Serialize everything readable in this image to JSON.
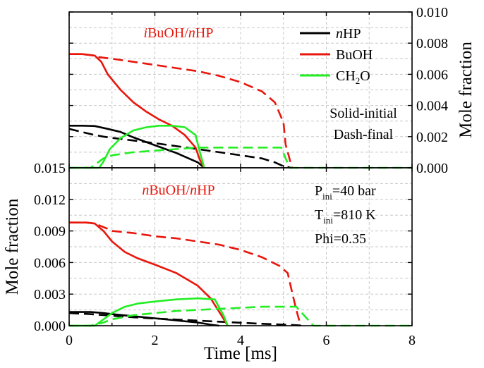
{
  "chart_data": [
    {
      "type": "line",
      "panel": "top",
      "title": "iBuOH/nHP",
      "title_parts": [
        {
          "text": "i",
          "italic": true
        },
        {
          "text": "BuOH/",
          "italic": false
        },
        {
          "text": "n",
          "italic": true
        },
        {
          "text": "HP",
          "italic": false
        }
      ],
      "xlabel": "",
      "ylabel": "Mole fraction",
      "ylabel_side": "right",
      "xlim": [
        0,
        8
      ],
      "ylim": [
        0,
        0.01
      ],
      "yticks": [
        "0.000",
        "0.002",
        "0.004",
        "0.006",
        "0.008",
        "0.010"
      ],
      "grid": true,
      "legend": {
        "position": "top-right",
        "entries": [
          {
            "parts": [
              {
                "text": "n",
                "italic": true
              },
              {
                "text": "HP"
              }
            ],
            "color": "#000000"
          },
          {
            "parts": [
              {
                "text": "BuOH"
              }
            ],
            "color": "#e8160c"
          },
          {
            "parts": [
              {
                "text": "CH"
              },
              {
                "text": "2",
                "sub": true
              },
              {
                "text": "O"
              }
            ],
            "color": "#22ee22"
          }
        ]
      },
      "annotations": [
        "Solid-initial",
        "Dash-final"
      ],
      "series": [
        {
          "name": "nHP initial",
          "color": "#000000",
          "dash": false,
          "x": [
            0,
            0.3,
            0.6,
            0.9,
            1.2,
            1.5,
            2.0,
            2.5,
            3.0,
            3.15
          ],
          "y": [
            0.0027,
            0.0027,
            0.00268,
            0.0025,
            0.0023,
            0.00195,
            0.00145,
            0.00095,
            0.00035,
            0.0
          ]
        },
        {
          "name": "nHP final",
          "color": "#000000",
          "dash": true,
          "x": [
            0,
            0.3,
            0.6,
            0.8,
            1.0,
            1.5,
            2.0,
            2.5,
            3.0,
            3.5,
            4.0,
            4.5,
            4.8,
            5.0,
            5.2
          ],
          "y": [
            0.0025,
            0.0023,
            0.0021,
            0.002,
            0.00192,
            0.00175,
            0.00158,
            0.00139,
            0.0012,
            0.001,
            0.0008,
            0.0006,
            0.00035,
            0.0001,
            0.0
          ]
        },
        {
          "name": "BuOH initial",
          "color": "#e8160c",
          "dash": false,
          "x": [
            0,
            0.3,
            0.6,
            0.75,
            0.9,
            1.2,
            1.5,
            1.8,
            2.1,
            2.4,
            2.7,
            2.95,
            3.05,
            3.15
          ],
          "y": [
            0.0073,
            0.0073,
            0.0072,
            0.0068,
            0.006,
            0.005,
            0.0042,
            0.0036,
            0.0031,
            0.0027,
            0.0021,
            0.0013,
            0.0005,
            0.0
          ]
        },
        {
          "name": "BuOH final",
          "color": "#e8160c",
          "dash": true,
          "x": [
            0,
            0.3,
            0.6,
            0.7,
            1.0,
            1.5,
            2.0,
            2.5,
            3.0,
            3.5,
            4.0,
            4.5,
            4.8,
            5.0,
            5.05,
            5.2
          ],
          "y": [
            0.0073,
            0.0073,
            0.0072,
            0.0071,
            0.007,
            0.0068,
            0.0066,
            0.0064,
            0.0062,
            0.0059,
            0.0055,
            0.0049,
            0.0042,
            0.0029,
            0.0015,
            0.0
          ]
        },
        {
          "name": "CH2O initial",
          "color": "#22ee22",
          "dash": false,
          "x": [
            0,
            0.7,
            0.8,
            0.95,
            1.2,
            1.5,
            1.8,
            2.1,
            2.4,
            2.7,
            2.95,
            3.05,
            3.15
          ],
          "y": [
            0.0,
            0.0,
            0.0004,
            0.0012,
            0.0019,
            0.0024,
            0.0026,
            0.0027,
            0.0027,
            0.0026,
            0.0021,
            0.001,
            0.0
          ]
        },
        {
          "name": "CH2O final",
          "color": "#22ee22",
          "dash": true,
          "x": [
            0,
            0.5,
            0.8,
            1.0,
            1.5,
            2.0,
            2.5,
            3.0,
            3.5,
            4.0,
            4.5,
            4.95,
            5.05,
            5.15,
            8.0
          ],
          "y": [
            0.0,
            0.0,
            0.0006,
            0.0008,
            0.001,
            0.0011,
            0.0012,
            0.0013,
            0.0013,
            0.0013,
            0.0013,
            0.0013,
            0.0006,
            0.0,
            0.0
          ]
        }
      ]
    },
    {
      "type": "line",
      "panel": "bottom",
      "title": "nBuOH/nHP",
      "title_parts": [
        {
          "text": "n",
          "italic": true
        },
        {
          "text": "BuOH/",
          "italic": false
        },
        {
          "text": "n",
          "italic": true
        },
        {
          "text": "HP",
          "italic": false
        }
      ],
      "xlabel": "Time [ms]",
      "ylabel": "Mole fraction",
      "ylabel_side": "left",
      "xlim": [
        0,
        8
      ],
      "ylim": [
        0,
        0.015
      ],
      "xticks": [
        "0",
        "2",
        "4",
        "6",
        "8"
      ],
      "yticks": [
        "0.000",
        "0.003",
        "0.006",
        "0.009",
        "0.012",
        "0.015"
      ],
      "grid": true,
      "conditions": [
        {
          "main": "P",
          "sub": "ini",
          "rest": "=40 bar"
        },
        {
          "main": "T",
          "sub": "ini",
          "rest": "=810 K"
        },
        {
          "main": "Phi=0.35",
          "sub": "",
          "rest": ""
        }
      ],
      "series": [
        {
          "name": "nHP initial",
          "color": "#000000",
          "dash": false,
          "x": [
            0,
            0.5,
            0.8,
            1.0,
            1.5,
            2.0,
            2.5,
            3.0,
            3.3,
            3.5
          ],
          "y": [
            0.0013,
            0.0013,
            0.0012,
            0.0011,
            0.0009,
            0.0007,
            0.0005,
            0.0003,
            0.0001,
            0.0
          ]
        },
        {
          "name": "nHP final",
          "color": "#000000",
          "dash": true,
          "x": [
            0,
            0.5,
            1.0,
            1.5,
            2.0,
            2.5,
            3.0,
            3.5,
            4.0,
            4.5,
            5.0,
            5.3,
            5.5
          ],
          "y": [
            0.0012,
            0.0011,
            0.00095,
            0.0008,
            0.00068,
            0.00058,
            0.00048,
            0.00038,
            0.00028,
            0.00018,
            0.0001,
            5e-05,
            0.0
          ]
        },
        {
          "name": "BuOH initial",
          "color": "#e8160c",
          "dash": false,
          "x": [
            0,
            0.4,
            0.6,
            0.8,
            1.0,
            1.3,
            1.6,
            2.0,
            2.5,
            3.0,
            3.3,
            3.55,
            3.7
          ],
          "y": [
            0.0098,
            0.0098,
            0.0097,
            0.009,
            0.008,
            0.007,
            0.0064,
            0.0058,
            0.005,
            0.0038,
            0.0026,
            0.001,
            0.0
          ]
        },
        {
          "name": "BuOH final",
          "color": "#e8160c",
          "dash": true,
          "x": [
            0,
            0.4,
            0.6,
            0.9,
            1.0,
            1.5,
            2.0,
            2.5,
            3.0,
            3.5,
            4.0,
            4.5,
            4.9,
            5.1,
            5.2,
            5.3,
            5.4
          ],
          "y": [
            0.0098,
            0.0098,
            0.0097,
            0.0092,
            0.009,
            0.0088,
            0.0085,
            0.0083,
            0.008,
            0.0077,
            0.0072,
            0.0065,
            0.0057,
            0.005,
            0.0032,
            0.0015,
            0.0
          ]
        },
        {
          "name": "CH2O initial",
          "color": "#22ee22",
          "dash": false,
          "x": [
            0,
            0.6,
            0.8,
            1.0,
            1.3,
            1.6,
            2.0,
            2.5,
            3.0,
            3.4,
            3.6,
            3.7
          ],
          "y": [
            0.0,
            0.0,
            0.0006,
            0.0012,
            0.0018,
            0.0021,
            0.0023,
            0.0025,
            0.0026,
            0.0025,
            0.001,
            0.0
          ]
        },
        {
          "name": "CH2O final",
          "color": "#22ee22",
          "dash": true,
          "x": [
            0,
            0.5,
            0.8,
            1.0,
            1.5,
            2.0,
            2.5,
            3.0,
            3.5,
            4.0,
            4.5,
            5.0,
            5.3,
            5.5,
            5.7,
            8.0
          ],
          "y": [
            0.0,
            0.0,
            0.0003,
            0.0006,
            0.001,
            0.0012,
            0.0014,
            0.0015,
            0.0016,
            0.0017,
            0.0018,
            0.0018,
            0.0018,
            0.0009,
            0.0,
            0.0
          ]
        }
      ]
    }
  ]
}
